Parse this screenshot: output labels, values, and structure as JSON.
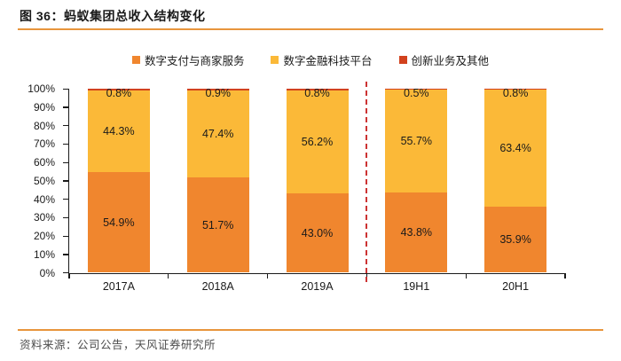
{
  "header": {
    "title": "图 36：蚂蚁集团总收入结构变化"
  },
  "footer": {
    "source": "资料来源：公司公告，天风证券研究所"
  },
  "colors": {
    "rule": "#E8953C",
    "axis": "#1a1a1a",
    "divider": "#CC3333",
    "label_text": "#1a1a1a"
  },
  "chart_data": {
    "type": "bar",
    "stacked": true,
    "title": "蚂蚁集团总收入结构变化",
    "categories": [
      "2017A",
      "2018A",
      "2019A",
      "19H1",
      "20H1"
    ],
    "series": [
      {
        "name": "数字支付与商家服务",
        "color": "#F0862E",
        "values": [
          54.9,
          51.7,
          43.0,
          43.8,
          35.9
        ]
      },
      {
        "name": "数字金融科技平台",
        "color": "#FBB938",
        "values": [
          44.3,
          47.4,
          56.2,
          55.7,
          63.4
        ]
      },
      {
        "name": "创新业务及其他",
        "color": "#D2421E",
        "values": [
          0.8,
          0.9,
          0.8,
          0.5,
          0.8
        ]
      }
    ],
    "value_suffix": "%",
    "y_ticks": [
      "100%",
      "90%",
      "80%",
      "70%",
      "60%",
      "50%",
      "40%",
      "30%",
      "20%",
      "10%",
      "0%"
    ],
    "ylim": [
      0,
      100
    ],
    "grid": false,
    "legend_position": "top",
    "divider_after_category": "2019A"
  }
}
